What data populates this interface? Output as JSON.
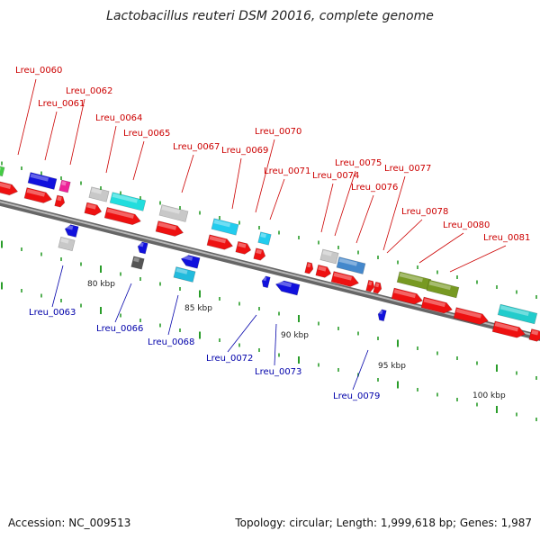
{
  "title": "Lactobacillus reuteri DSM 20016, complete genome",
  "footer": {
    "accession": "Accession: NC_009513",
    "summary": "Topology: circular; Length: 1,999,618 bp; Genes: 1,987"
  },
  "colors": {
    "top_label": "#cc0000",
    "bottom_label": "#0000aa",
    "backbone": "#888888",
    "tick": "#2a9d2a"
  },
  "scale_labels": [
    "80 kbp",
    "85 kbp",
    "90 kbp",
    "95 kbp",
    "100 kbp"
  ],
  "top_labels": [
    "Lreu_0060",
    "Lreu_0061",
    "Lreu_0062",
    "Lreu_0064",
    "Lreu_0065",
    "Lreu_0067",
    "Lreu_0069",
    "Lreu_0070",
    "Lreu_0071",
    "Lreu_0074",
    "Lreu_0075",
    "Lreu_0076",
    "Lreu_0077",
    "Lreu_0078",
    "Lreu_0080",
    "Lreu_0081"
  ],
  "bottom_labels": [
    "Lreu_0063",
    "Lreu_0066",
    "Lreu_0068",
    "Lreu_0072",
    "Lreu_0073",
    "Lreu_0079"
  ]
}
